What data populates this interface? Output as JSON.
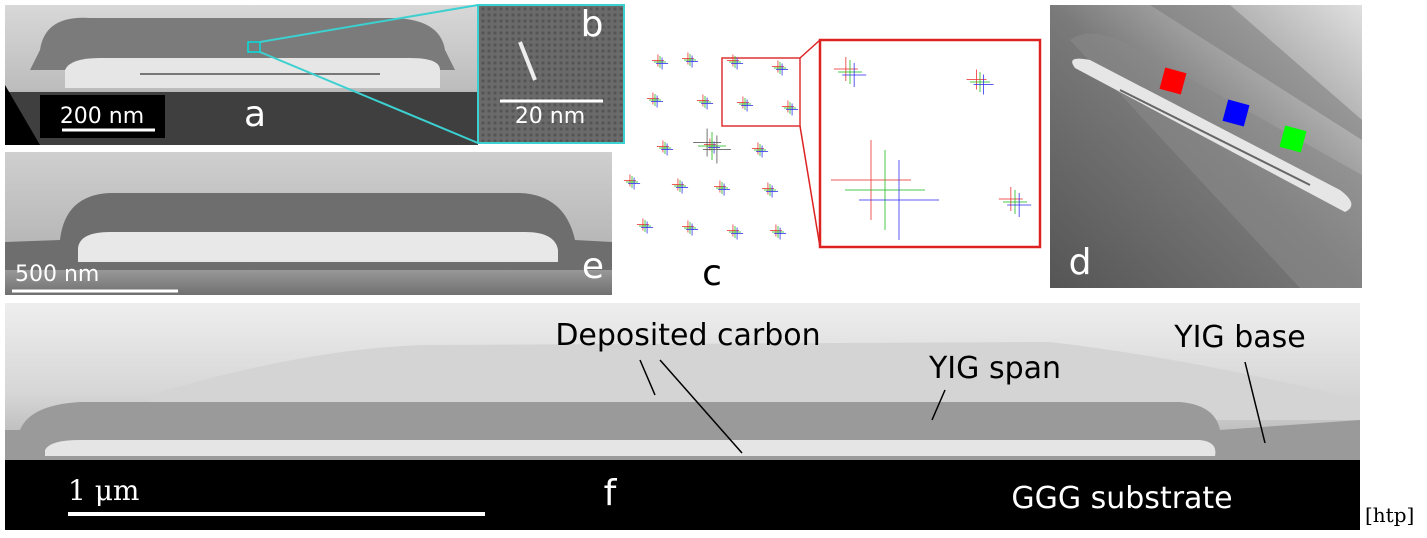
{
  "panels": {
    "a": {
      "label": "a",
      "scale_bar": "200 nm"
    },
    "b": {
      "label": "b",
      "scale_bar": "20 nm"
    },
    "c": {
      "label": "c"
    },
    "d": {
      "label": "d"
    },
    "e": {
      "label": "e",
      "scale_bar": "500 nm"
    },
    "f": {
      "label": "f",
      "scale_bar": "1 μm",
      "annotations": [
        "Deposited carbon",
        "YIG span",
        "YIG base",
        "GGG substrate"
      ]
    }
  },
  "placement": "[htp]"
}
